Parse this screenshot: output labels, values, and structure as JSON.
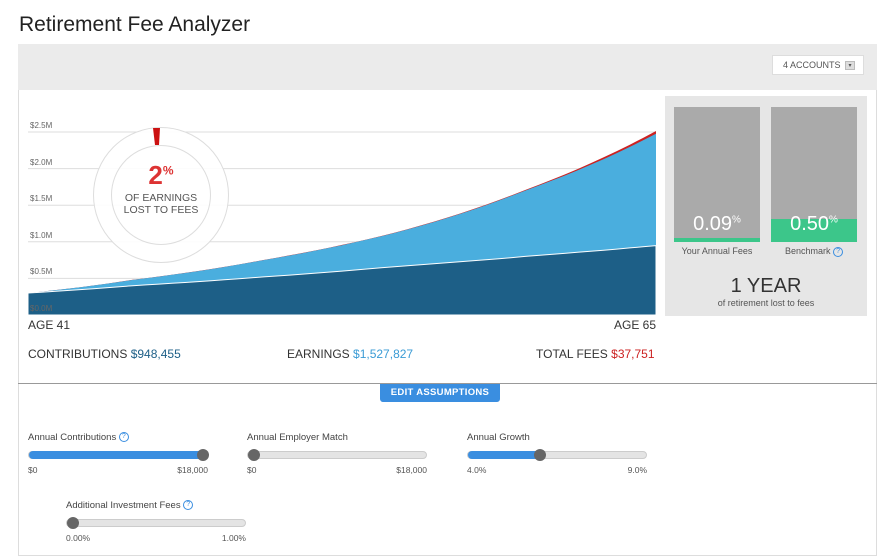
{
  "title": "Retirement Fee Analyzer",
  "accounts": {
    "label": "4 ACCOUNTS"
  },
  "chart_data": {
    "type": "area",
    "x": [
      41,
      45,
      50,
      55,
      60,
      65
    ],
    "series": [
      {
        "values": [
          0.3,
          0.4,
          0.52,
          0.66,
          0.8,
          0.948
        ]
      },
      {
        "values": [
          0.3,
          0.48,
          0.75,
          1.12,
          1.7,
          2.476
        ]
      },
      {
        "values": [
          0.3,
          0.481,
          0.752,
          1.124,
          1.708,
          2.514
        ]
      }
    ],
    "yticks": [
      "$0.0M",
      "$0.5M",
      "$1.0M",
      "$1.5M",
      "$2.0M",
      "$2.5M"
    ],
    "ylim": [
      0,
      2.5
    ],
    "colors": {
      "contributions": "#1d5f87",
      "earnings": "#4aaede",
      "fees": "#cc2222"
    },
    "xlabels": {
      "start": "AGE 41",
      "end": "AGE 65"
    }
  },
  "ring": {
    "percent": "2",
    "pct_sign": "%",
    "text1": "OF EARNINGS",
    "text2": "LOST TO FEES"
  },
  "summary": {
    "contrib_label": "CONTRIBUTIONS",
    "contrib": "$948,455",
    "earn_label": "EARNINGS",
    "earn": "$1,527,827",
    "fees_label": "TOTAL FEES",
    "fees": "$37,751"
  },
  "fees": {
    "yours": {
      "value": "0.09",
      "sign": "%",
      "label": "Your Annual Fees",
      "fill": 0.03
    },
    "bench": {
      "value": "0.50",
      "sign": "%",
      "label": "Benchmark",
      "fill": 0.17
    },
    "years": "1 YEAR",
    "years_sub": "of retirement lost to fees",
    "help": "?"
  },
  "edit_label": "EDIT ASSUMPTIONS",
  "sliders": [
    {
      "label": "Annual Contributions",
      "help": true,
      "min": "$0",
      "max": "$18,000",
      "value": 1.0,
      "filled": true
    },
    {
      "label": "Annual Employer Match",
      "help": false,
      "min": "$0",
      "max": "$18,000",
      "value": 0.0,
      "filled": false
    },
    {
      "label": "Annual Growth",
      "help": false,
      "min": "4.0%",
      "max": "9.0%",
      "value": 0.4,
      "filled": true
    },
    {
      "label": "Additional Investment Fees",
      "help": true,
      "min": "0.00%",
      "max": "1.00%",
      "value": 0.0,
      "filled": false
    }
  ]
}
